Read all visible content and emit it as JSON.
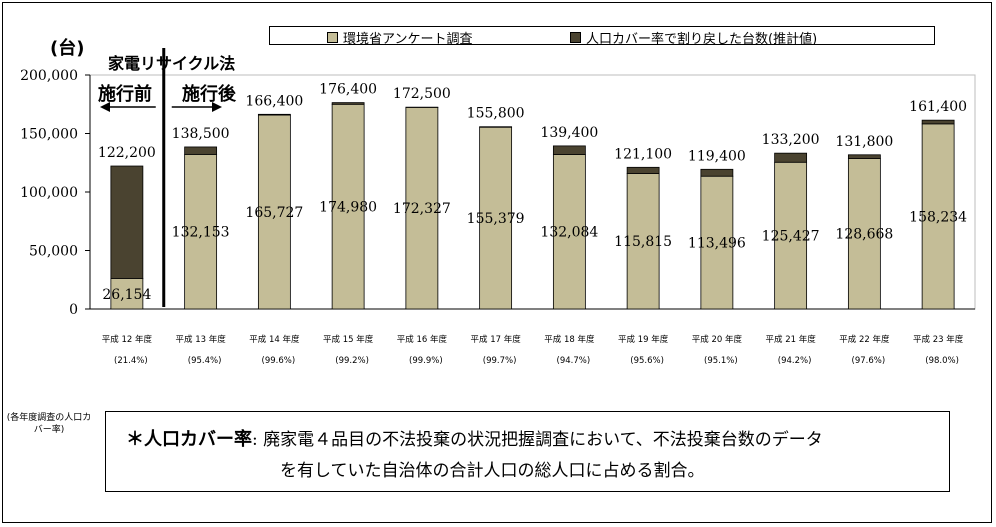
{
  "chart_data": {
    "type": "bar",
    "stacked": true,
    "unit_label": "(台)",
    "categories": [
      "平成 12 年度",
      "平成 13 年度",
      "平成 14 年度",
      "平成 15 年度",
      "平成 16 年度",
      "平成 17 年度",
      "平成 18 年度",
      "平成 19 年度",
      "平成 20 年度",
      "平成 21 年度",
      "平成 22 年度",
      "平成 23 年度"
    ],
    "coverage_labels": [
      "(21.4%)",
      "(95.4%)",
      "(99.6%)",
      "(99.2%)",
      "(99.9%)",
      "(99.7%)",
      "(94.7%)",
      "(95.6%)",
      "(95.1%)",
      "(94.2%)",
      "(97.6%)",
      "(98.0%)"
    ],
    "series": [
      {
        "name": "環境省アンケート調査",
        "color": "#c4bd97",
        "values": [
          26154,
          132153,
          165727,
          174980,
          172327,
          155379,
          132084,
          115815,
          113496,
          125427,
          128668,
          158234
        ],
        "labels": [
          "26,154",
          "132,153",
          "165,727",
          "174,980",
          "172,327",
          "155,379",
          "132,084",
          "115,815",
          "113,496",
          "125,427",
          "128,668",
          "158,234"
        ]
      },
      {
        "name": "人口カバー率で割り戻した台数(推計値)",
        "color": "#4a4330",
        "values": [
          96046,
          6347,
          673,
          1420,
          173,
          421,
          7316,
          5285,
          5904,
          7773,
          3132,
          3166
        ]
      }
    ],
    "totals": [
      122200,
      138500,
      166400,
      176400,
      172500,
      155800,
      139400,
      121100,
      119400,
      133200,
      131800,
      161400
    ],
    "total_labels": [
      "122,200",
      "138,500",
      "166,400",
      "176,400",
      "172,500",
      "155,800",
      "139,400",
      "121,100",
      "119,400",
      "133,200",
      "131,800",
      "161,400"
    ],
    "y_ticks": [
      "0",
      "50,000",
      "100,000",
      "150,000",
      "200,000"
    ],
    "ylim": [
      0,
      200000
    ],
    "grid": false,
    "legend_position": "top"
  },
  "annotations": {
    "law": "家電リサイクル法",
    "before": "施行前",
    "after": "施行後"
  },
  "note_left": "(各年度調査の人口カバー率)",
  "definition": {
    "term": "＊人口カバー率",
    "text_line1": ": 廃家電４品目の不法投棄の状況把握調査において、不法投棄台数のデータ",
    "text_line2": "を有していた自治体の合計人口の総人口に占める割合。"
  }
}
